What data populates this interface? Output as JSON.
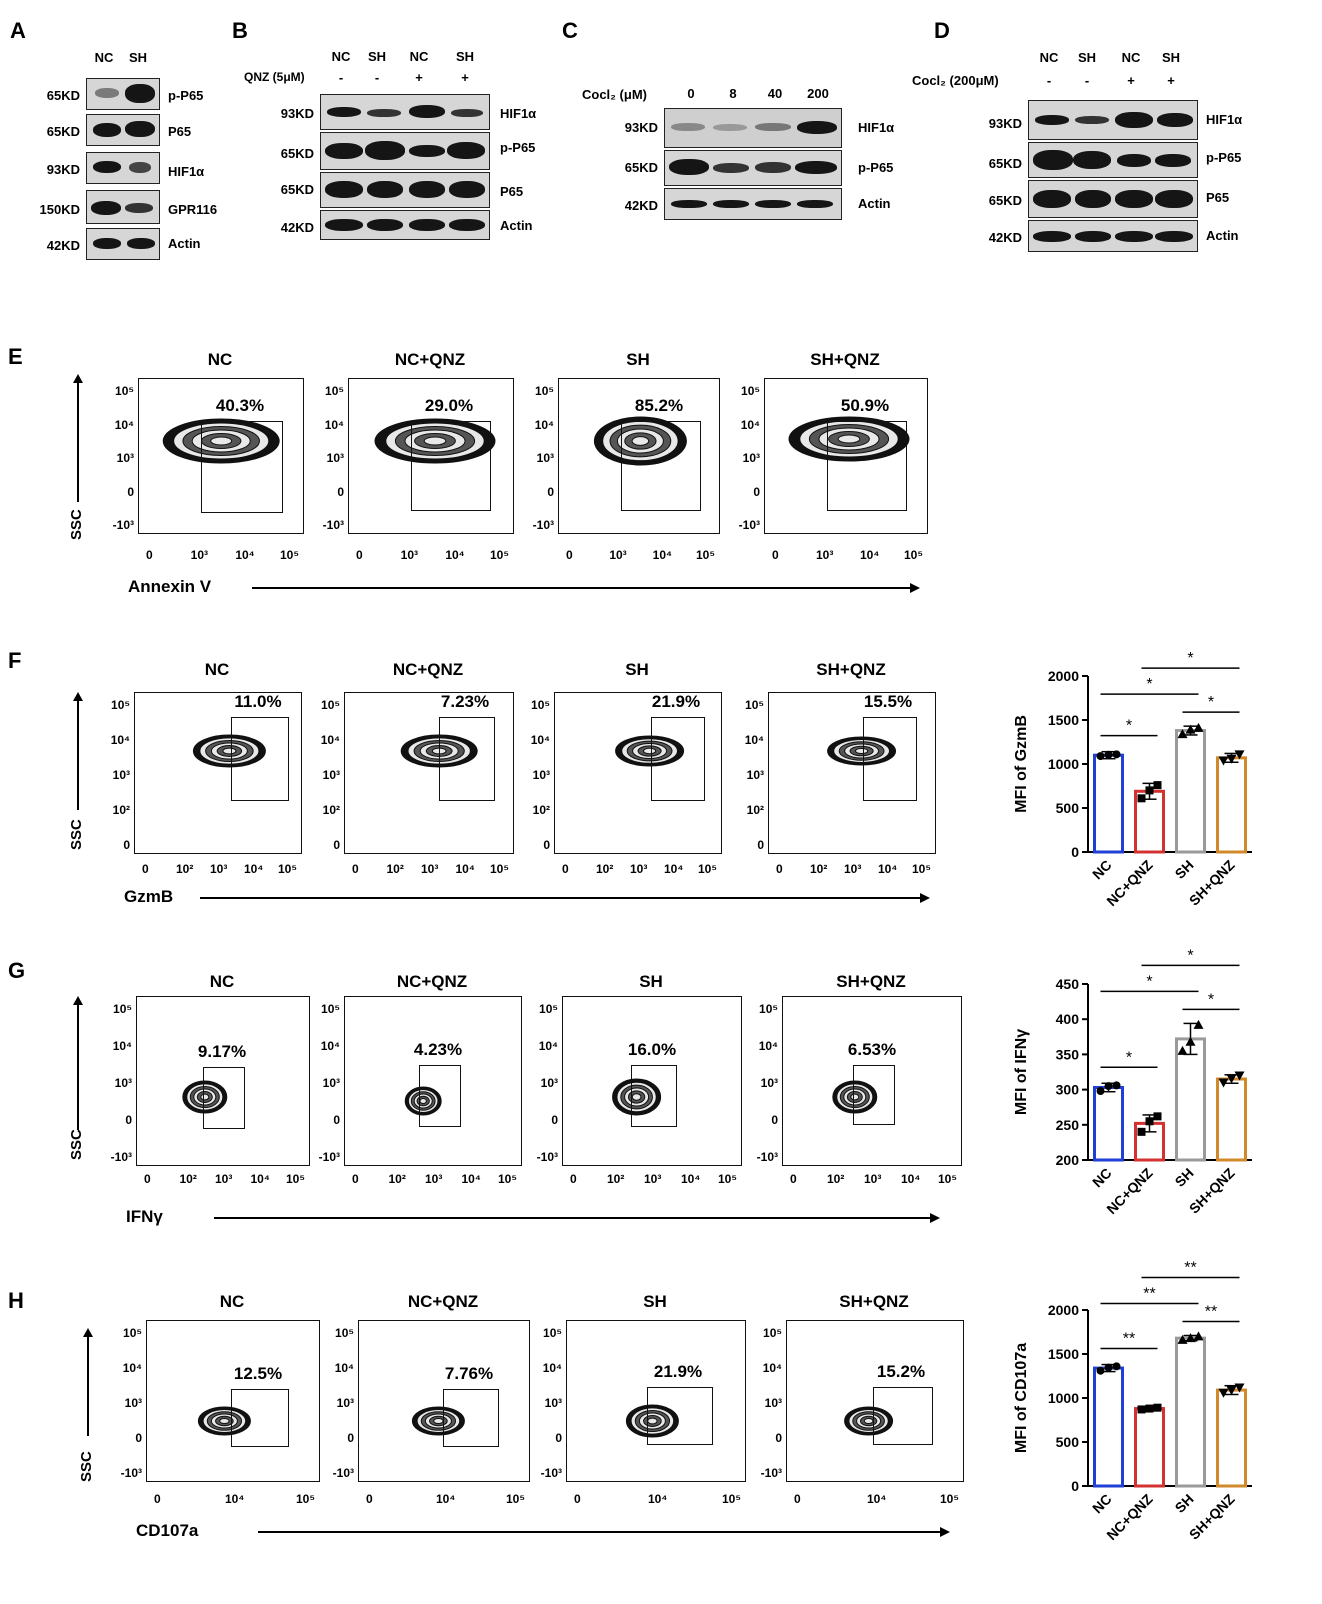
{
  "panel_letters": [
    "A",
    "B",
    "C",
    "D",
    "E",
    "F",
    "G",
    "H"
  ],
  "blots": {
    "A": {
      "headers": [
        "NC",
        "SH"
      ],
      "rows": [
        {
          "kd": "65KD",
          "protein": "p-P65"
        },
        {
          "kd": "65KD",
          "protein": "P65"
        },
        {
          "kd": "93KD",
          "protein": "HIF1α"
        },
        {
          "kd": "150KD",
          "protein": "GPR116"
        },
        {
          "kd": "42KD",
          "protein": "Actin"
        }
      ]
    },
    "B": {
      "headers": [
        "NC",
        "SH",
        "NC",
        "SH"
      ],
      "treat_label": "QNZ (5μM)",
      "treat_values": [
        "-",
        "-",
        "+",
        "+"
      ],
      "rows": [
        {
          "kd": "93KD",
          "protein": "HIF1α"
        },
        {
          "kd": "65KD",
          "protein": "p-P65"
        },
        {
          "kd": "65KD",
          "protein": "P65"
        },
        {
          "kd": "42KD",
          "protein": "Actin"
        }
      ]
    },
    "C": {
      "treat_label": "Cocl₂ (μM)",
      "doses": [
        "0",
        "8",
        "40",
        "200"
      ],
      "rows": [
        {
          "kd": "93KD",
          "protein": "HIF1α"
        },
        {
          "kd": "65KD",
          "protein": "p-P65"
        },
        {
          "kd": "42KD",
          "protein": "Actin"
        }
      ]
    },
    "D": {
      "headers": [
        "NC",
        "SH",
        "NC",
        "SH"
      ],
      "treat_label": "Cocl₂ (200μM)",
      "treat_values": [
        "-",
        "-",
        "+",
        "+"
      ],
      "rows": [
        {
          "kd": "93KD",
          "protein": "HIF1α"
        },
        {
          "kd": "65KD",
          "protein": "p-P65"
        },
        {
          "kd": "65KD",
          "protein": "P65"
        },
        {
          "kd": "42KD",
          "protein": "Actin"
        }
      ]
    }
  },
  "flow": {
    "E": {
      "titles": [
        "NC",
        "NC+QNZ",
        "SH",
        "SH+QNZ"
      ],
      "percents": [
        "40.3%",
        "29.0%",
        "85.2%",
        "50.9%"
      ],
      "yticks": [
        "10⁵",
        "10⁴",
        "10³",
        "0",
        "-10³"
      ],
      "xticks": [
        "0",
        "10³",
        "10⁴",
        "10⁵"
      ],
      "ylabel": "SSC",
      "xlabel": "Annexin V"
    },
    "F": {
      "titles": [
        "NC",
        "NC+QNZ",
        "SH",
        "SH+QNZ"
      ],
      "percents": [
        "11.0%",
        "7.23%",
        "21.9%",
        "15.5%"
      ],
      "yticks": [
        "10⁵",
        "10⁴",
        "10³",
        "10²",
        "0"
      ],
      "xticks": [
        "0",
        "10²",
        "10³",
        "10⁴",
        "10⁵"
      ],
      "ylabel": "SSC",
      "xlabel": "GzmB"
    },
    "G": {
      "titles": [
        "NC",
        "NC+QNZ",
        "SH",
        "SH+QNZ"
      ],
      "percents": [
        "9.17%",
        "4.23%",
        "16.0%",
        "6.53%"
      ],
      "yticks": [
        "10⁵",
        "10⁴",
        "10³",
        "0",
        "-10³"
      ],
      "xticks": [
        "0",
        "10²",
        "10³",
        "10⁴",
        "10⁵"
      ],
      "ylabel": "SSC",
      "xlabel": "IFNγ"
    },
    "H": {
      "titles": [
        "NC",
        "NC+QNZ",
        "SH",
        "SH+QNZ"
      ],
      "percents": [
        "12.5%",
        "7.76%",
        "21.9%",
        "15.2%"
      ],
      "yticks": [
        "10⁵",
        "10⁴",
        "10³",
        "0",
        "-10³"
      ],
      "xticks": [
        "0",
        "10⁴",
        "10⁵"
      ],
      "ylabel": "SSC",
      "xlabel": "CD107a"
    }
  },
  "colors": {
    "NC": "#1f3fd6",
    "NC+QNZ": "#d43131",
    "SH": "#9a9a9a",
    "SH+QNZ": "#d08a2a"
  },
  "chart_data": [
    {
      "type": "bar",
      "panel": "F",
      "categories": [
        "NC",
        "NC+QNZ",
        "SH",
        "SH+QNZ"
      ],
      "values": [
        1100,
        690,
        1380,
        1070
      ],
      "errors": [
        40,
        90,
        50,
        50
      ],
      "points": [
        [
          1090,
          1105,
          1110
        ],
        [
          610,
          700,
          760
        ],
        [
          1340,
          1390,
          1410
        ],
        [
          1040,
          1060,
          1110
        ]
      ],
      "ylabel": "MFI of GzmB",
      "ylim": [
        0,
        2000
      ],
      "yticks": [
        0,
        500,
        1000,
        1500,
        2000
      ],
      "significance": [
        {
          "from": 0,
          "to": 1,
          "label": "*"
        },
        {
          "from": 0,
          "to": 2,
          "label": "*"
        },
        {
          "from": 1,
          "to": 3,
          "label": "*"
        },
        {
          "from": 2,
          "to": 3,
          "label": "*"
        }
      ]
    },
    {
      "type": "bar",
      "panel": "G",
      "categories": [
        "NC",
        "NC+QNZ",
        "SH",
        "SH+QNZ"
      ],
      "values": [
        303,
        252,
        372,
        315
      ],
      "errors": [
        6,
        12,
        22,
        6
      ],
      "points": [
        [
          298,
          305,
          306
        ],
        [
          240,
          255,
          262
        ],
        [
          355,
          368,
          392
        ],
        [
          310,
          316,
          320
        ]
      ],
      "ylabel": "MFI of IFNγ",
      "ylim": [
        200,
        450
      ],
      "yticks": [
        200,
        250,
        300,
        350,
        400,
        450
      ],
      "significance": [
        {
          "from": 0,
          "to": 1,
          "label": "*"
        },
        {
          "from": 0,
          "to": 2,
          "label": "*"
        },
        {
          "from": 1,
          "to": 3,
          "label": "*"
        },
        {
          "from": 2,
          "to": 3,
          "label": "*"
        }
      ]
    },
    {
      "type": "bar",
      "panel": "H",
      "categories": [
        "NC",
        "NC+QNZ",
        "SH",
        "SH+QNZ"
      ],
      "values": [
        1340,
        880,
        1680,
        1090
      ],
      "errors": [
        40,
        25,
        30,
        50
      ],
      "points": [
        [
          1310,
          1345,
          1360
        ],
        [
          870,
          880,
          890
        ],
        [
          1660,
          1680,
          1700
        ],
        [
          1060,
          1090,
          1120
        ]
      ],
      "ylabel": "MFI of CD107a",
      "ylim": [
        0,
        2000
      ],
      "yticks": [
        0,
        500,
        1000,
        1500,
        2000
      ],
      "significance": [
        {
          "from": 0,
          "to": 1,
          "label": "**"
        },
        {
          "from": 0,
          "to": 2,
          "label": "**"
        },
        {
          "from": 1,
          "to": 3,
          "label": "**"
        },
        {
          "from": 2,
          "to": 3,
          "label": "**"
        }
      ]
    }
  ]
}
